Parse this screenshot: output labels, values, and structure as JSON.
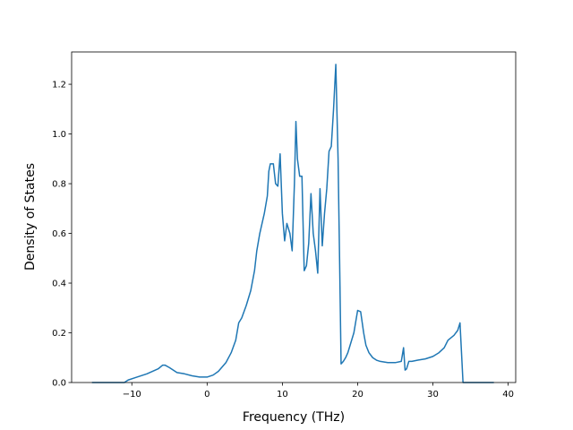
{
  "chart_data": {
    "type": "line",
    "title": "",
    "xlabel": "Frequency (THz)",
    "ylabel": "Density of States",
    "xlim": [
      -18,
      41
    ],
    "ylim": [
      0,
      1.33
    ],
    "xticks": [
      -10,
      0,
      10,
      20,
      30,
      40
    ],
    "xtick_labels": [
      "−10",
      "0",
      "10",
      "20",
      "30",
      "40"
    ],
    "yticks": [
      0.0,
      0.2,
      0.4,
      0.6,
      0.8,
      1.0,
      1.2
    ],
    "ytick_labels": [
      "0.0",
      "0.2",
      "0.4",
      "0.6",
      "0.8",
      "1.0",
      "1.2"
    ],
    "grid": false,
    "line_color": "#1f77b4",
    "x": [
      -15.3,
      -11.0,
      -10.5,
      -9.5,
      -8.0,
      -6.5,
      -5.9,
      -5.6,
      -5.0,
      -4.5,
      -4.0,
      -3.0,
      -2.0,
      -1.0,
      0.0,
      0.8,
      1.5,
      2.5,
      3.2,
      3.8,
      4.2,
      4.6,
      5.2,
      5.8,
      6.3,
      6.6,
      7.0,
      7.6,
      8.0,
      8.2,
      8.4,
      8.8,
      9.1,
      9.4,
      9.7,
      10.0,
      10.3,
      10.6,
      11.0,
      11.3,
      11.6,
      11.8,
      12.0,
      12.3,
      12.6,
      12.9,
      13.2,
      13.5,
      13.8,
      14.1,
      14.4,
      14.7,
      15.0,
      15.3,
      15.6,
      15.9,
      16.2,
      16.5,
      16.8,
      17.1,
      17.4,
      17.6,
      17.8,
      18.1,
      18.4,
      18.7,
      19.0,
      19.5,
      20.0,
      20.4,
      20.8,
      21.1,
      21.5,
      22.0,
      22.5,
      23.0,
      24.0,
      25.0,
      25.8,
      26.1,
      26.3,
      26.5,
      26.8,
      27.2,
      28.0,
      29.0,
      30.0,
      30.8,
      31.5,
      32.0,
      32.8,
      33.3,
      33.6,
      34.0,
      38.1
    ],
    "y": [
      0.0,
      0.0,
      0.01,
      0.02,
      0.035,
      0.055,
      0.07,
      0.07,
      0.06,
      0.05,
      0.04,
      0.035,
      0.027,
      0.022,
      0.022,
      0.03,
      0.045,
      0.08,
      0.12,
      0.17,
      0.24,
      0.26,
      0.31,
      0.37,
      0.45,
      0.53,
      0.6,
      0.68,
      0.75,
      0.85,
      0.88,
      0.88,
      0.8,
      0.79,
      0.92,
      0.68,
      0.57,
      0.64,
      0.6,
      0.53,
      0.8,
      1.05,
      0.9,
      0.83,
      0.83,
      0.45,
      0.47,
      0.56,
      0.76,
      0.6,
      0.53,
      0.44,
      0.78,
      0.55,
      0.68,
      0.78,
      0.93,
      0.95,
      1.1,
      1.28,
      0.9,
      0.5,
      0.075,
      0.085,
      0.1,
      0.12,
      0.15,
      0.2,
      0.29,
      0.285,
      0.2,
      0.15,
      0.12,
      0.1,
      0.09,
      0.085,
      0.08,
      0.08,
      0.085,
      0.14,
      0.05,
      0.055,
      0.085,
      0.085,
      0.09,
      0.095,
      0.105,
      0.12,
      0.14,
      0.17,
      0.19,
      0.21,
      0.24,
      0.0,
      0.0
    ]
  }
}
